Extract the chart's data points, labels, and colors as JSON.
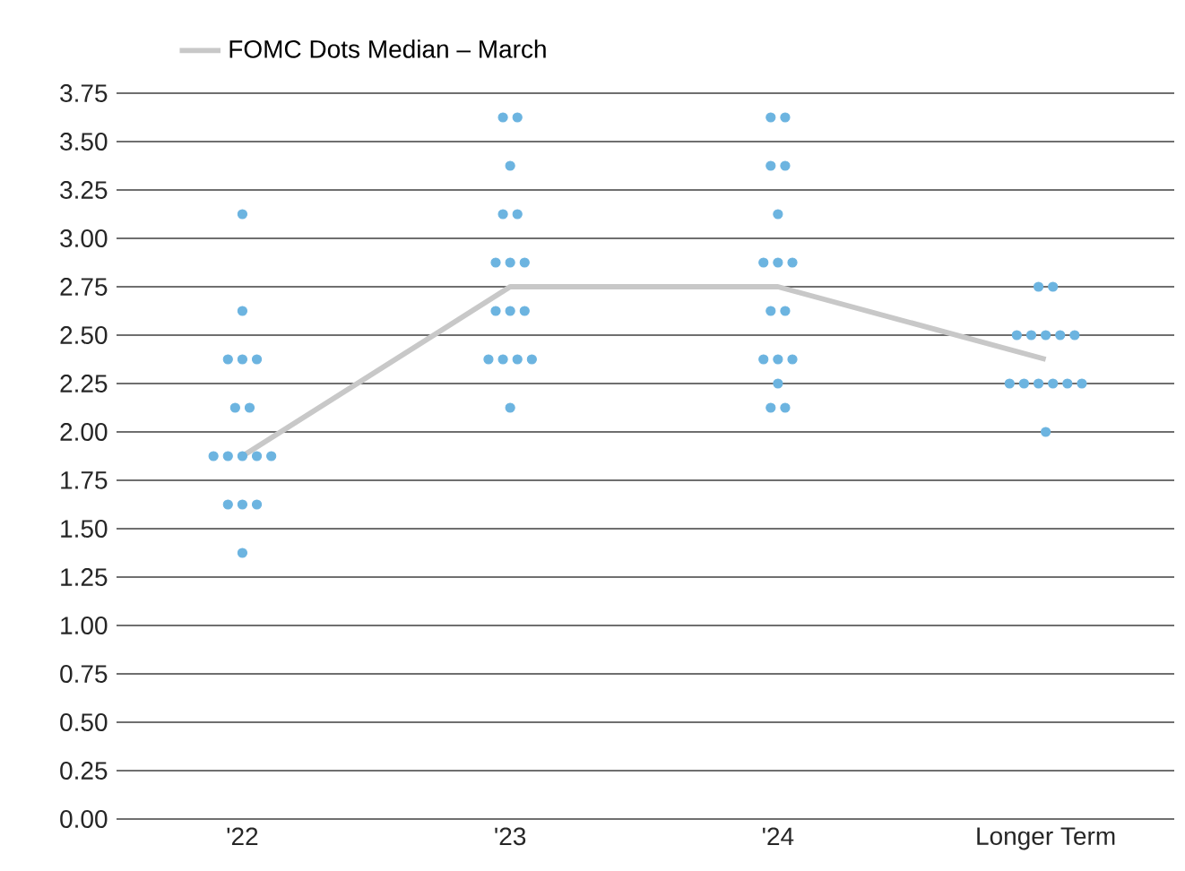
{
  "chart_data": {
    "type": "scatter",
    "categories": [
      "'22",
      "'23",
      "'24",
      "Longer Term"
    ],
    "ylim": [
      0,
      3.75
    ],
    "yticks": [
      {
        "value": 0,
        "label": "0.00"
      },
      {
        "value": 0.25,
        "label": "0.25"
      },
      {
        "value": 0.5,
        "label": "0.50"
      },
      {
        "value": 0.75,
        "label": "0.75"
      },
      {
        "value": 1,
        "label": "1.00"
      },
      {
        "value": 1.25,
        "label": "1.25"
      },
      {
        "value": 1.5,
        "label": "1.50"
      },
      {
        "value": 1.75,
        "label": "1.75"
      },
      {
        "value": 2,
        "label": "2.00"
      },
      {
        "value": 2.25,
        "label": "2.25"
      },
      {
        "value": 2.5,
        "label": "2.50"
      },
      {
        "value": 2.75,
        "label": "2.75"
      },
      {
        "value": 3,
        "label": "3.00"
      },
      {
        "value": 3.25,
        "label": "3.25"
      },
      {
        "value": 3.5,
        "label": "3.50"
      },
      {
        "value": 3.75,
        "label": "3.75"
      }
    ],
    "grid": "y",
    "legend": "top left",
    "series": [
      {
        "color": "#6cb4e0",
        "marker": "circle",
        "x": [
          "'22",
          "'22",
          "'22",
          "'22",
          "'22",
          "'22",
          "'22",
          "'22",
          "'22",
          "'22",
          "'22",
          "'22",
          "'22",
          "'22",
          "'22",
          "'22",
          "'23",
          "'23",
          "'23",
          "'23",
          "'23",
          "'23",
          "'23",
          "'23",
          "'23",
          "'23",
          "'23",
          "'23",
          "'23",
          "'23",
          "'23",
          "'23",
          "'24",
          "'24",
          "'24",
          "'24",
          "'24",
          "'24",
          "'24",
          "'24",
          "'24",
          "'24",
          "'24",
          "'24",
          "'24",
          "'24",
          "'24",
          "'24",
          "Longer Term",
          "Longer Term",
          "Longer Term",
          "Longer Term",
          "Longer Term",
          "Longer Term",
          "Longer Term",
          "Longer Term",
          "Longer Term",
          "Longer Term",
          "Longer Term",
          "Longer Term",
          "Longer Term",
          "Longer Term"
        ],
        "values": [
          3.125,
          2.625,
          2.375,
          2.375,
          2.375,
          2.125,
          2.125,
          1.875,
          1.875,
          1.875,
          1.875,
          1.875,
          1.625,
          1.625,
          1.625,
          1.375,
          3.625,
          3.625,
          3.375,
          3.125,
          3.125,
          2.875,
          2.875,
          2.875,
          2.625,
          2.625,
          2.625,
          2.375,
          2.375,
          2.375,
          2.375,
          2.125,
          3.625,
          3.625,
          3.375,
          3.375,
          3.125,
          2.875,
          2.875,
          2.875,
          2.625,
          2.625,
          2.375,
          2.375,
          2.375,
          2.25,
          2.125,
          2.125,
          2.75,
          2.75,
          2.5,
          2.5,
          2.5,
          2.5,
          2.5,
          2.25,
          2.25,
          2.25,
          2.25,
          2.25,
          2.25,
          2.0
        ]
      },
      {
        "type": "line",
        "name": "FOMC Dots Median – March",
        "color": "#c8c8c8",
        "marker": "none",
        "values": [
          1.875,
          2.75,
          2.75,
          2.375
        ]
      }
    ]
  }
}
